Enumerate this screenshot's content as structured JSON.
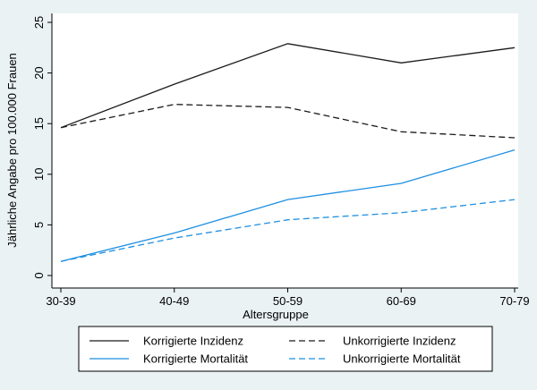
{
  "chart_data": {
    "type": "line",
    "title": "",
    "xlabel": "Altersgruppe",
    "ylabel": "Jährliche Angabe pro 100.000 Frauen",
    "categories": [
      "30-39",
      "40-49",
      "50-59",
      "60-69",
      "70-79"
    ],
    "ylim": [
      0,
      25
    ],
    "yticks": [
      0,
      5,
      10,
      15,
      20,
      25
    ],
    "grid": false,
    "legend_position": "bottom",
    "series": [
      {
        "name": "Korrigierte Inzidenz",
        "values": [
          14.6,
          18.9,
          22.9,
          21.0,
          22.5
        ],
        "color": "#1a1a1a",
        "dash": "solid"
      },
      {
        "name": "Unkorrigierte Inzidenz",
        "values": [
          14.6,
          16.9,
          16.6,
          14.2,
          13.6
        ],
        "color": "#1a1a1a",
        "dash": "dashed"
      },
      {
        "name": "Korrigierte Mortalität",
        "values": [
          1.4,
          4.2,
          7.5,
          9.1,
          12.4
        ],
        "color": "#1e8fe1",
        "dash": "solid"
      },
      {
        "name": "Unkorrigierte Mortalität",
        "values": [
          1.4,
          3.7,
          5.5,
          6.2,
          7.5
        ],
        "color": "#1e8fe1",
        "dash": "dashed"
      }
    ]
  }
}
